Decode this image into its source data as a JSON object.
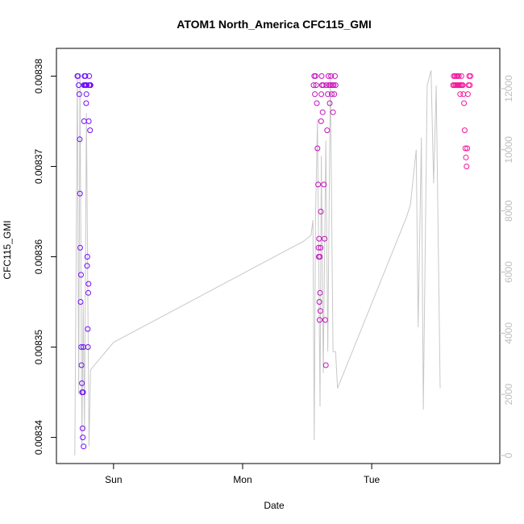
{
  "chart_data": {
    "type": "scatter",
    "title": "ATOM1 North_America CFC115_GMI",
    "xlabel": "Date",
    "ylabel": "CFC115_GMI",
    "x_ticks": [
      "Sun",
      "Mon",
      "Tue"
    ],
    "y_ticks": [
      "0.00834",
      "0.00835",
      "0.00836",
      "0.00837",
      "0.00838"
    ],
    "y_tick_values": [
      0.00834,
      0.00835,
      0.00836,
      0.00837,
      0.00838
    ],
    "y2_ticks": [
      "0",
      "2000",
      "4000",
      "6000",
      "8000",
      "10000",
      "12000"
    ],
    "y2_tick_values": [
      0,
      2000,
      4000,
      6000,
      8000,
      10000,
      12000
    ],
    "x_tick_positions_days": [
      1.0,
      2.0,
      3.0
    ],
    "xlim_days": [
      0.62,
      3.93
    ],
    "ylim": [
      0.008338,
      0.008382
    ],
    "y2lim": [
      0,
      13000
    ],
    "colors": {
      "start": "#6a0dff",
      "end": "#ff1493",
      "altitude_line": "#c8c8c8",
      "right_axis": "#bebebe"
    },
    "series": [
      {
        "points": [
          {
            "x": 0.72,
            "y": 0.00838
          },
          {
            "x": 0.724,
            "y": 0.00838
          },
          {
            "x": 0.73,
            "y": 0.008379
          },
          {
            "x": 0.735,
            "y": 0.008378
          },
          {
            "x": 0.738,
            "y": 0.008373
          },
          {
            "x": 0.74,
            "y": 0.008367
          },
          {
            "x": 0.742,
            "y": 0.008361
          },
          {
            "x": 0.745,
            "y": 0.008355
          },
          {
            "x": 0.748,
            "y": 0.008358
          },
          {
            "x": 0.75,
            "y": 0.00835
          },
          {
            "x": 0.752,
            "y": 0.008348
          },
          {
            "x": 0.755,
            "y": 0.008346
          },
          {
            "x": 0.757,
            "y": 0.008345
          },
          {
            "x": 0.76,
            "y": 0.008341
          },
          {
            "x": 0.762,
            "y": 0.00834
          },
          {
            "x": 0.764,
            "y": 0.008345
          },
          {
            "x": 0.766,
            "y": 0.00835
          },
          {
            "x": 0.768,
            "y": 0.008339
          },
          {
            "x": 0.77,
            "y": 0.008379
          },
          {
            "x": 0.772,
            "y": 0.008375
          },
          {
            "x": 0.775,
            "y": 0.00838
          },
          {
            "x": 0.778,
            "y": 0.008379
          },
          {
            "x": 0.78,
            "y": 0.008379
          },
          {
            "x": 0.782,
            "y": 0.00838
          },
          {
            "x": 0.785,
            "y": 0.008379
          },
          {
            "x": 0.788,
            "y": 0.008377
          },
          {
            "x": 0.79,
            "y": 0.008378
          },
          {
            "x": 0.792,
            "y": 0.008379
          },
          {
            "x": 0.795,
            "y": 0.008359
          },
          {
            "x": 0.797,
            "y": 0.00836
          },
          {
            "x": 0.8,
            "y": 0.008352
          },
          {
            "x": 0.802,
            "y": 0.00835
          },
          {
            "x": 0.804,
            "y": 0.008356
          },
          {
            "x": 0.806,
            "y": 0.008357
          },
          {
            "x": 0.808,
            "y": 0.008375
          },
          {
            "x": 0.81,
            "y": 0.008379
          },
          {
            "x": 0.812,
            "y": 0.00838
          },
          {
            "x": 0.815,
            "y": 0.008379
          },
          {
            "x": 0.818,
            "y": 0.008374
          },
          {
            "x": 0.82,
            "y": 0.008379
          },
          {
            "x": 0.822,
            "y": 0.008379
          }
        ]
      },
      {
        "points": [
          {
            "x": 2.55,
            "y": 0.008379
          },
          {
            "x": 2.555,
            "y": 0.00838
          },
          {
            "x": 2.56,
            "y": 0.008378
          },
          {
            "x": 2.565,
            "y": 0.00838
          },
          {
            "x": 2.57,
            "y": 0.008379
          },
          {
            "x": 2.575,
            "y": 0.008377
          },
          {
            "x": 2.58,
            "y": 0.008372
          },
          {
            "x": 2.585,
            "y": 0.008368
          },
          {
            "x": 2.588,
            "y": 0.008361
          },
          {
            "x": 2.59,
            "y": 0.00836
          },
          {
            "x": 2.592,
            "y": 0.008362
          },
          {
            "x": 2.594,
            "y": 0.008355
          },
          {
            "x": 2.596,
            "y": 0.008353
          },
          {
            "x": 2.598,
            "y": 0.00836
          },
          {
            "x": 2.6,
            "y": 0.008356
          },
          {
            "x": 2.602,
            "y": 0.008354
          },
          {
            "x": 2.604,
            "y": 0.008361
          },
          {
            "x": 2.606,
            "y": 0.008365
          },
          {
            "x": 2.608,
            "y": 0.008375
          },
          {
            "x": 2.61,
            "y": 0.008378
          },
          {
            "x": 2.612,
            "y": 0.00838
          },
          {
            "x": 2.615,
            "y": 0.008379
          },
          {
            "x": 2.62,
            "y": 0.008376
          },
          {
            "x": 2.625,
            "y": 0.008379
          },
          {
            "x": 2.63,
            "y": 0.008368
          },
          {
            "x": 2.635,
            "y": 0.008362
          },
          {
            "x": 2.64,
            "y": 0.008353
          },
          {
            "x": 2.645,
            "y": 0.008348
          },
          {
            "x": 2.65,
            "y": 0.008379
          },
          {
            "x": 2.655,
            "y": 0.008374
          },
          {
            "x": 2.66,
            "y": 0.008378
          },
          {
            "x": 2.665,
            "y": 0.00838
          },
          {
            "x": 2.67,
            "y": 0.008379
          },
          {
            "x": 2.675,
            "y": 0.008377
          },
          {
            "x": 2.68,
            "y": 0.008379
          },
          {
            "x": 2.685,
            "y": 0.00838
          },
          {
            "x": 2.69,
            "y": 0.008378
          },
          {
            "x": 2.695,
            "y": 0.008379
          },
          {
            "x": 2.7,
            "y": 0.008376
          },
          {
            "x": 2.705,
            "y": 0.008379
          },
          {
            "x": 2.71,
            "y": 0.008378
          },
          {
            "x": 2.715,
            "y": 0.00838
          },
          {
            "x": 2.72,
            "y": 0.008379
          }
        ]
      },
      {
        "points": [
          {
            "x": 3.63,
            "y": 0.008379
          },
          {
            "x": 3.635,
            "y": 0.00838
          },
          {
            "x": 3.64,
            "y": 0.008379
          },
          {
            "x": 3.645,
            "y": 0.00838
          },
          {
            "x": 3.65,
            "y": 0.008379
          },
          {
            "x": 3.655,
            "y": 0.00838
          },
          {
            "x": 3.66,
            "y": 0.008379
          },
          {
            "x": 3.665,
            "y": 0.00838
          },
          {
            "x": 3.67,
            "y": 0.008379
          },
          {
            "x": 3.675,
            "y": 0.00838
          },
          {
            "x": 3.68,
            "y": 0.008379
          },
          {
            "x": 3.685,
            "y": 0.008378
          },
          {
            "x": 3.69,
            "y": 0.008379
          },
          {
            "x": 3.695,
            "y": 0.00838
          },
          {
            "x": 3.7,
            "y": 0.008379
          },
          {
            "x": 3.705,
            "y": 0.008379
          },
          {
            "x": 3.71,
            "y": 0.008378
          },
          {
            "x": 3.715,
            "y": 0.008377
          },
          {
            "x": 3.72,
            "y": 0.008374
          },
          {
            "x": 3.725,
            "y": 0.008372
          },
          {
            "x": 3.73,
            "y": 0.008371
          },
          {
            "x": 3.735,
            "y": 0.00837
          },
          {
            "x": 3.74,
            "y": 0.008372
          },
          {
            "x": 3.745,
            "y": 0.008378
          },
          {
            "x": 3.75,
            "y": 0.008379
          },
          {
            "x": 3.755,
            "y": 0.00838
          },
          {
            "x": 3.76,
            "y": 0.008379
          },
          {
            "x": 3.765,
            "y": 0.00838
          }
        ]
      }
    ],
    "altitude_line": [
      {
        "x": 0.7,
        "y2": 0
      },
      {
        "x": 0.72,
        "y2": 12500
      },
      {
        "x": 0.73,
        "y2": 2000
      },
      {
        "x": 0.74,
        "y2": 12500
      },
      {
        "x": 0.755,
        "y2": 300
      },
      {
        "x": 0.765,
        "y2": 5000
      },
      {
        "x": 0.775,
        "y2": 800
      },
      {
        "x": 0.79,
        "y2": 11200
      },
      {
        "x": 0.81,
        "y2": 300
      },
      {
        "x": 0.822,
        "y2": 2800
      },
      {
        "x": 1.0,
        "y2": 3700
      },
      {
        "x": 2.47,
        "y2": 7000
      },
      {
        "x": 2.53,
        "y2": 7200
      },
      {
        "x": 2.545,
        "y2": 7700
      },
      {
        "x": 2.555,
        "y2": 500
      },
      {
        "x": 2.565,
        "y2": 7800
      },
      {
        "x": 2.58,
        "y2": 11000
      },
      {
        "x": 2.6,
        "y2": 1600
      },
      {
        "x": 2.61,
        "y2": 9800
      },
      {
        "x": 2.625,
        "y2": 2700
      },
      {
        "x": 2.645,
        "y2": 10300
      },
      {
        "x": 2.66,
        "y2": 3400
      },
      {
        "x": 2.68,
        "y2": 12400
      },
      {
        "x": 2.7,
        "y2": 3400
      },
      {
        "x": 2.72,
        "y2": 3400
      },
      {
        "x": 2.735,
        "y2": 2200
      },
      {
        "x": 3.27,
        "y2": 7800
      },
      {
        "x": 3.3,
        "y2": 8200
      },
      {
        "x": 3.345,
        "y2": 10000
      },
      {
        "x": 3.36,
        "y2": 4200
      },
      {
        "x": 3.385,
        "y2": 10400
      },
      {
        "x": 3.4,
        "y2": 1500
      },
      {
        "x": 3.43,
        "y2": 12100
      },
      {
        "x": 3.46,
        "y2": 12600
      },
      {
        "x": 3.48,
        "y2": 8900
      },
      {
        "x": 3.5,
        "y2": 12100
      },
      {
        "x": 3.53,
        "y2": 2200
      }
    ],
    "grid": false,
    "legend": "none"
  }
}
